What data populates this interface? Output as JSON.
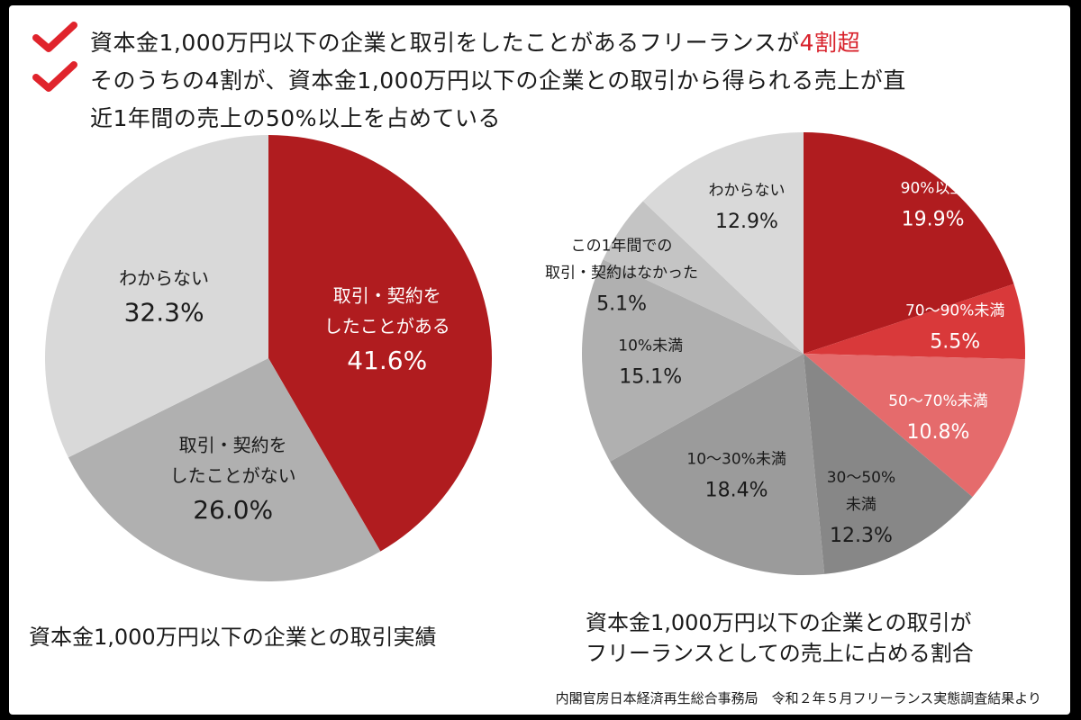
{
  "headline": {
    "line1_prefix": "資本金1,000万円以下の企業と取引をしたことがあるフリーランスが",
    "line1_accent": "4割超",
    "line2": "そのうちの4割が、資本金1,000万円以下の企業との取引から得られる売上が直",
    "line3": "近1年間の売上の50%以上を占めている"
  },
  "colors": {
    "dark_red": "#b01c1f",
    "mid_red": "#d9393a",
    "light_red": "#e56b6c",
    "check_red": "#e0242c",
    "light_gray": "#d9d9d9",
    "mid_gray": "#b0b0b0",
    "dark_gray": "#8f8f8f",
    "darker_gray": "#878787"
  },
  "chart_data": [
    {
      "type": "pie",
      "title": "資本金1,000万円以下の企業との取引実績",
      "slices": [
        {
          "label_lines": [
            "取引・契約を",
            "したことがある"
          ],
          "value": 41.6,
          "value_text": "41.6%",
          "color": "#b01c1f",
          "text_color": "#ffffff"
        },
        {
          "label_lines": [
            "取引・契約を",
            "したことがない"
          ],
          "value": 26.0,
          "value_text": "26.0%",
          "color": "#b0b0b0",
          "text_color": "#1a1a1a"
        },
        {
          "label_lines": [
            "わからない"
          ],
          "value": 32.3,
          "value_text": "32.3%",
          "color": "#d9d9d9",
          "text_color": "#1a1a1a"
        }
      ]
    },
    {
      "type": "pie",
      "title_lines": [
        "資本金1,000万円以下の企業との取引が",
        "フリーランスとしての売上に占める割合"
      ],
      "slices": [
        {
          "label_lines": [
            "90%以上"
          ],
          "value": 19.9,
          "value_text": "19.9%",
          "color": "#b01c1f",
          "text_color": "#ffffff"
        },
        {
          "label_lines": [
            "70〜90%未満"
          ],
          "value": 5.5,
          "value_text": "5.5%",
          "color": "#d9393a",
          "text_color": "#ffffff"
        },
        {
          "label_lines": [
            "50〜70%未満"
          ],
          "value": 10.8,
          "value_text": "10.8%",
          "color": "#e56b6c",
          "text_color": "#ffffff"
        },
        {
          "label_lines": [
            "30〜50%",
            "未満"
          ],
          "value": 12.3,
          "value_text": "12.3%",
          "color": "#878787",
          "text_color": "#1a1a1a"
        },
        {
          "label_lines": [
            "10〜30%未満"
          ],
          "value": 18.4,
          "value_text": "18.4%",
          "color": "#9b9b9b",
          "text_color": "#1a1a1a"
        },
        {
          "label_lines": [
            "10%未満"
          ],
          "value": 15.1,
          "value_text": "15.1%",
          "color": "#b0b0b0",
          "text_color": "#1a1a1a"
        },
        {
          "label_lines": [
            "この1年間での",
            "取引・契約はなかった"
          ],
          "value": 5.1,
          "value_text": "5.1%",
          "color": "#c4c4c4",
          "text_color": "#1a1a1a"
        },
        {
          "label_lines": [
            "わからない"
          ],
          "value": 12.9,
          "value_text": "12.9%",
          "color": "#d9d9d9",
          "text_color": "#1a1a1a"
        }
      ]
    }
  ],
  "source": "内閣官房日本経済再生総合事務局　令和２年５月フリーランス実態調査結果より"
}
